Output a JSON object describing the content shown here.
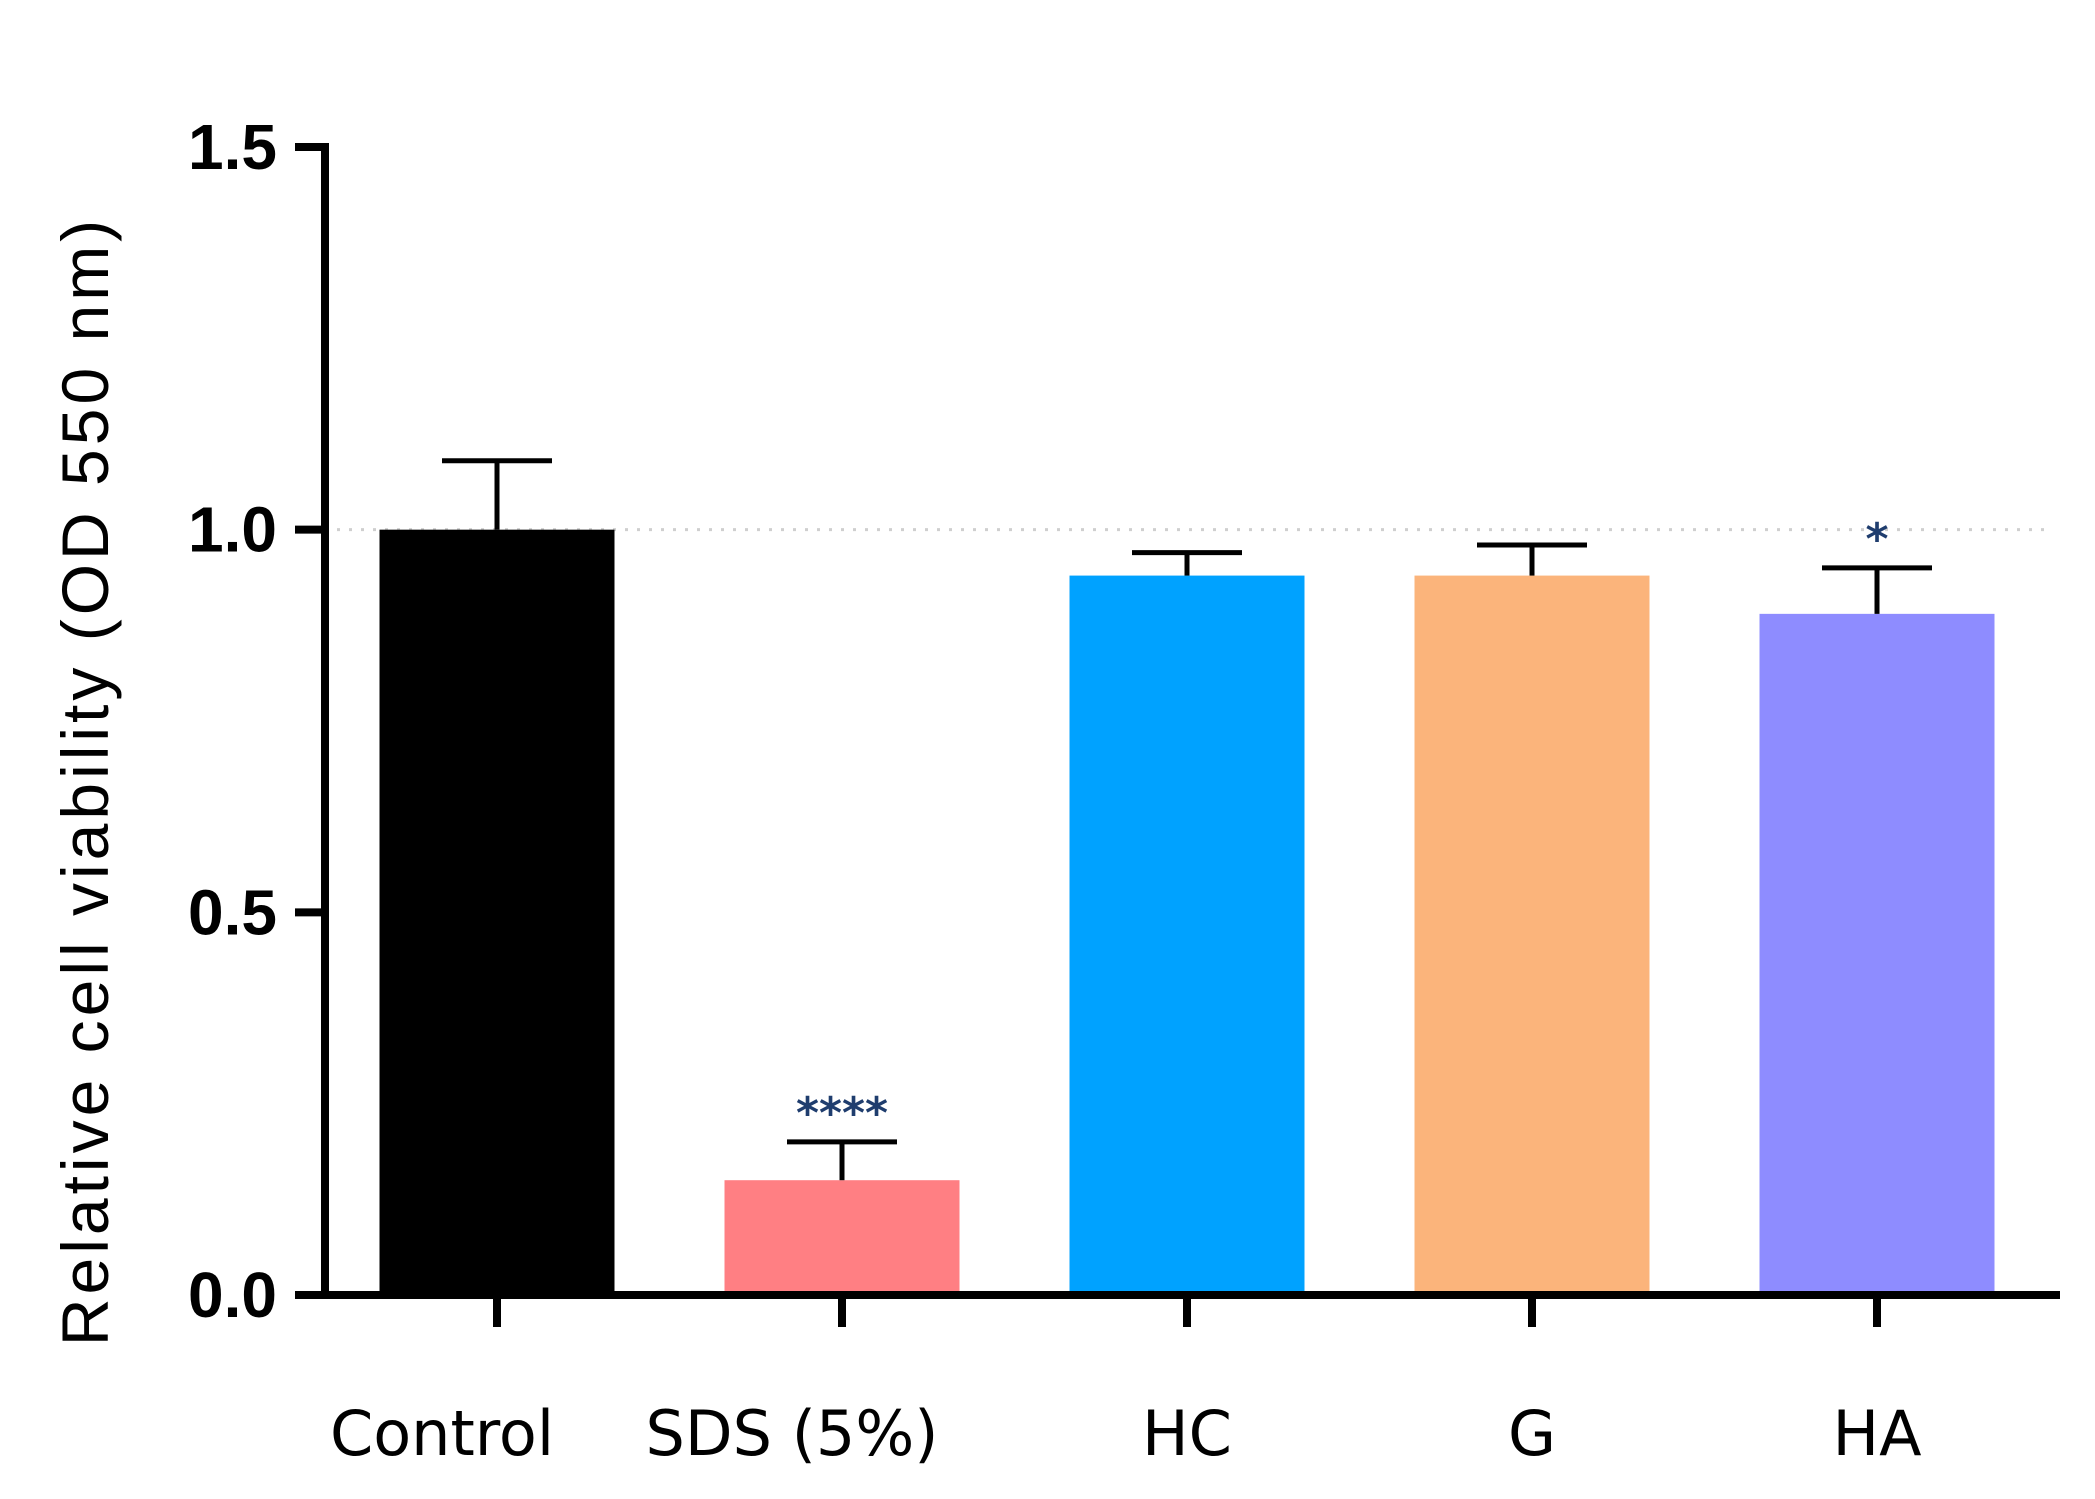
{
  "chart_data": {
    "type": "bar",
    "title": "",
    "xlabel": "",
    "ylabel": "Relative cell viability (OD 550 nm)",
    "ylim": [
      0,
      1.5
    ],
    "yticks": [
      "0.0",
      "0.5",
      "1.0",
      "1.5"
    ],
    "reference_line": 1.0,
    "categories": [
      "Control",
      "SDS (5%)",
      "HC",
      "G",
      "HA"
    ],
    "values": [
      1.0,
      0.15,
      0.94,
      0.94,
      0.89
    ],
    "errors": [
      0.09,
      0.05,
      0.03,
      0.04,
      0.06
    ],
    "significance": [
      "",
      "****",
      "",
      "",
      "*"
    ],
    "colors": [
      "#000000",
      "#ff7f83",
      "#00a2ff",
      "#fbb47b",
      "#8e8cff"
    ]
  }
}
